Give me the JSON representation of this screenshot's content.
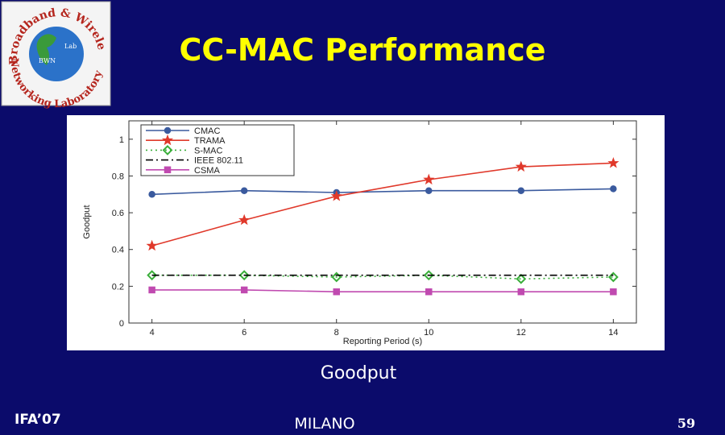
{
  "slide": {
    "title": "CC-MAC Performance",
    "caption": "Goodput",
    "footer_left": "IFA’07",
    "footer_center": "MILANO",
    "page_number": "59"
  },
  "logo": {
    "top": "Broadband & Wireless",
    "bottom": "Networking Laboratory",
    "inner_left": "BWN",
    "inner_right": "Lab"
  },
  "chart_data": {
    "type": "line",
    "xlabel": "Reporting Period (s)",
    "ylabel": "Goodput",
    "x": [
      4,
      6,
      8,
      10,
      12,
      14
    ],
    "xlim": [
      3.5,
      14.5
    ],
    "xticks": [
      4,
      6,
      8,
      10,
      12,
      14
    ],
    "ylim": [
      0,
      1.1
    ],
    "yticks": [
      0,
      0.2,
      0.4,
      0.6,
      0.8,
      1
    ],
    "legend": "upper left",
    "series": [
      {
        "name": "CMAC",
        "color": "#3a5a9e",
        "marker": "circle",
        "dash": "solid",
        "values": [
          0.7,
          0.72,
          0.71,
          0.72,
          0.72,
          0.73
        ]
      },
      {
        "name": "TRAMA",
        "color": "#e0392b",
        "marker": "star",
        "dash": "solid",
        "values": [
          0.42,
          0.56,
          0.69,
          0.78,
          0.85,
          0.87
        ]
      },
      {
        "name": "S-MAC",
        "color": "#3aae3a",
        "marker": "diamond",
        "dash": "dotted",
        "values": [
          0.26,
          0.26,
          0.25,
          0.26,
          0.24,
          0.25
        ]
      },
      {
        "name": "IEEE 802.11",
        "color": "#000000",
        "marker": "none",
        "dash": "dashdot",
        "values": [
          0.26,
          0.26,
          0.26,
          0.26,
          0.26,
          0.26
        ]
      },
      {
        "name": "CSMA",
        "color": "#c04ab0",
        "marker": "square",
        "dash": "solid",
        "values": [
          0.18,
          0.18,
          0.17,
          0.17,
          0.17,
          0.17
        ]
      }
    ]
  }
}
